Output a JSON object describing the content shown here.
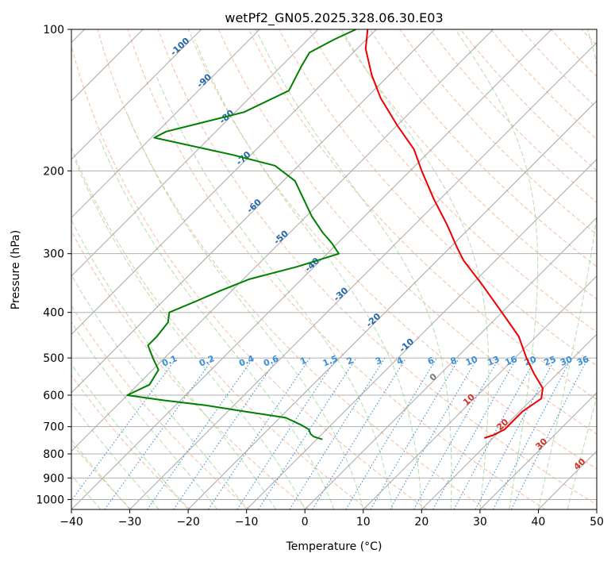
{
  "chart_data": {
    "type": "line",
    "subtype": "skew-T log-P diagram",
    "title": "wetPf2_GN05.2025.328.06.30.E03",
    "xlabel": "Temperature (°C)",
    "ylabel": "Pressure (hPa)",
    "xlim": [
      -40,
      50
    ],
    "ylim": [
      1050,
      100
    ],
    "y_scale": "log",
    "x_ticks": [
      -40,
      -30,
      -20,
      -10,
      0,
      10,
      20,
      30,
      40,
      50
    ],
    "y_ticks": [
      100,
      200,
      300,
      400,
      500,
      600,
      700,
      800,
      900,
      1000
    ],
    "grid": true,
    "colors": {
      "temperature": "#ee0000",
      "dewpoint": "#008000",
      "isotherm_grid": "#999999",
      "dry_adiabat": "#f4a582",
      "moist_adiabat": "#a6d8a0",
      "mixing_ratio": "#3b8fd8",
      "isotherm_labels_blue": "#2166ac",
      "isotherm_labels_red": "#d73027",
      "isotherm_label_zero": "#777777"
    },
    "series": [
      {
        "name": "temperature",
        "pressure": [
          100,
          110,
          125,
          140,
          160,
          180,
          200,
          230,
          260,
          290,
          310,
          350,
          400,
          450,
          500,
          540,
          580,
          610,
          650,
          690,
          710,
          730,
          740
        ],
        "values": [
          -71.5,
          -68.5,
          -63,
          -57.5,
          -50,
          -43,
          -38,
          -31,
          -24.5,
          -19,
          -15.5,
          -8,
          0,
          7,
          12,
          16,
          20,
          21.5,
          20.5,
          20.5,
          20.5,
          19.5,
          18.5
        ]
      },
      {
        "name": "dewpoint",
        "pressure": [
          100,
          105,
          112,
          120,
          135,
          150,
          165,
          170,
          185,
          195,
          210,
          250,
          270,
          285,
          300,
          320,
          340,
          360,
          380,
          400,
          420,
          450,
          470,
          500,
          530,
          570,
          600,
          615,
          630,
          650,
          670,
          695,
          710,
          725,
          735,
          745
        ],
        "values": [
          -73.5,
          -75.5,
          -77.5,
          -76.5,
          -74.5,
          -78.5,
          -88.5,
          -89.5,
          -73,
          -64,
          -58,
          -49,
          -44.5,
          -41,
          -38,
          -43,
          -49,
          -52,
          -54.5,
          -57,
          -55.5,
          -55,
          -55,
          -52,
          -49,
          -48,
          -50,
          -43,
          -35,
          -27,
          -19,
          -15,
          -13,
          -12,
          -11,
          -9
        ]
      }
    ],
    "isotherm_labels": [
      "-100",
      "-90",
      "-80",
      "-70",
      "-60",
      "-50",
      "-40",
      "-30",
      "-20",
      "-10",
      "0",
      "10",
      "20",
      "30",
      "40"
    ],
    "mixing_ratio_labels": [
      "0.1",
      "0.2",
      "0.4",
      "0.6",
      "1",
      "1.5",
      "2",
      "3",
      "4",
      "6",
      "8",
      "10",
      "13",
      "16",
      "20",
      "25",
      "30",
      "36"
    ]
  }
}
